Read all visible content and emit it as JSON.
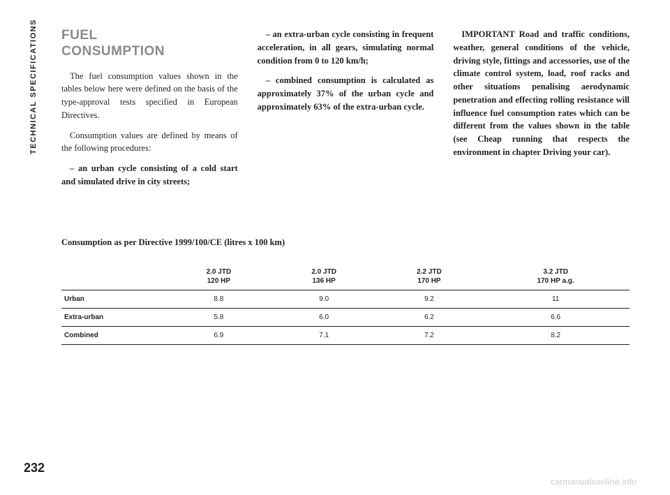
{
  "side_tab": "TECHNICAL SPECIFICATIONS",
  "page_number": "232",
  "watermark": "carmanualsonline.info",
  "heading_line1": "FUEL",
  "heading_line2": "CONSUMPTION",
  "col1_p1": "The fuel consumption values shown in the tables below here were defined on the basis of the type-approval tests specified in European Directives.",
  "col1_p2": "Consumption values are defined by means of the following procedures:",
  "col1_p3": "– an urban cycle consisting of a cold start and simulated drive in city streets;",
  "col2_p1": "– an extra-urban cycle consisting in frequent acceleration, in all gears, simulating normal condition from 0 to 120 km/h;",
  "col2_p2": "– combined consumption is calculated as approximately 37% of the urban cycle and approximately 63% of the extra-urban cycle.",
  "col3_p1": "IMPORTANT Road and traffic conditions, weather, general conditions of the vehicle, driving style, fittings and accessories, use of the climate control system, load, roof racks and other situations penalising aerodynamic penetration and effecting rolling resistance will influence fuel consumption rates which can be different from the values shown in the table (see Cheap running that respects the environment in chapter Driving your car).",
  "table_title": "Consumption as per Directive 1999/100/CE (litres x 100 km)",
  "table": {
    "columns_blank": "",
    "headers": [
      {
        "l1": "2.0 JTD",
        "l2": "120 HP"
      },
      {
        "l1": "2.0 JTD",
        "l2": "136 HP"
      },
      {
        "l1": "2.2 JTD",
        "l2": "170 HP"
      },
      {
        "l1": "3.2 JTD",
        "l2": "170 HP a.g."
      }
    ],
    "rows": [
      {
        "label": "Urban",
        "v": [
          "8.8",
          "9.0",
          "9.2",
          "11"
        ]
      },
      {
        "label": "Extra-urban",
        "v": [
          "5.8",
          "6.0",
          "6.2",
          "6.6"
        ]
      },
      {
        "label": "Combined",
        "v": [
          "6.9",
          "7.1",
          "7.2",
          "8.2"
        ]
      }
    ]
  },
  "colors": {
    "heading": "#8a8a8a",
    "text": "#231f20",
    "bg": "#ffffff",
    "watermark": "#c8c8c8"
  }
}
